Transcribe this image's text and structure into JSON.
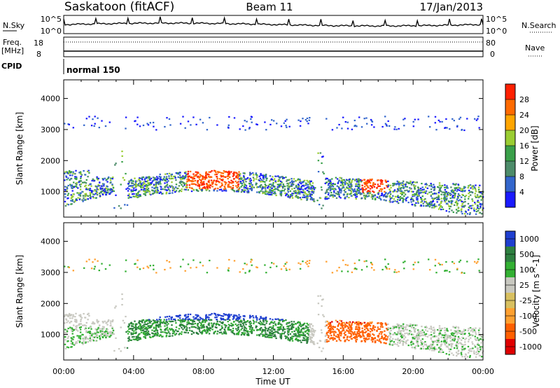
{
  "header": {
    "station": "Saskatoon (fitACF)",
    "beam": "Beam 11",
    "date": "17/Jan/2013"
  },
  "strip": {
    "nsky_label": "N.Sky",
    "nsearch_label": "N.Search",
    "n_ticks": [
      "10^5",
      "10^0"
    ],
    "freq_label_1": "Freq.",
    "freq_label_2": "[MHz]",
    "freq_ticks": [
      "18",
      "8"
    ],
    "nave_label": "Nave",
    "nave_ticks": [
      "80",
      "0"
    ],
    "cpid_label": "CPID",
    "cpid_value": "normal 150"
  },
  "colors": {
    "power": [
      "#1a1aff",
      "#3366cc",
      "#4d8c6a",
      "#3aa04a",
      "#9acd32",
      "#ffa500",
      "#ff6a00",
      "#ff2000"
    ],
    "velocity": [
      "#e00000",
      "#ff6000",
      "#ffa030",
      "#d8c060",
      "#c8c8c0",
      "#33b033",
      "#2e8040",
      "#1f3fd0"
    ]
  },
  "chart_data": [
    {
      "type": "heatmap",
      "parameter": "power",
      "xlabel": "",
      "ylabel": "Slant Range [km]",
      "xlim": [
        0,
        24
      ],
      "ylim": [
        180,
        4600
      ],
      "yticks": [
        "1000",
        "2000",
        "3000",
        "4000"
      ],
      "colorbar": {
        "label": "Power [dB]",
        "ticks": [
          "4",
          "8",
          "12",
          "16",
          "20",
          "24",
          "28"
        ],
        "range": [
          0,
          30
        ]
      }
    },
    {
      "type": "heatmap",
      "parameter": "velocity",
      "xlabel": "Time UT",
      "ylabel": "Slant Range [km]",
      "xlim": [
        0,
        24
      ],
      "ylim": [
        180,
        4600
      ],
      "xticks": [
        "00:00",
        "04:00",
        "08:00",
        "12:00",
        "16:00",
        "20:00",
        "00:00"
      ],
      "yticks": [
        "1000",
        "2000",
        "3000",
        "4000"
      ],
      "colorbar": {
        "label": "Velocity [m s^-1]",
        "ticks": [
          "1000",
          "500",
          "100",
          "25",
          "-25",
          "-100",
          "-500",
          "-1000"
        ]
      }
    }
  ]
}
